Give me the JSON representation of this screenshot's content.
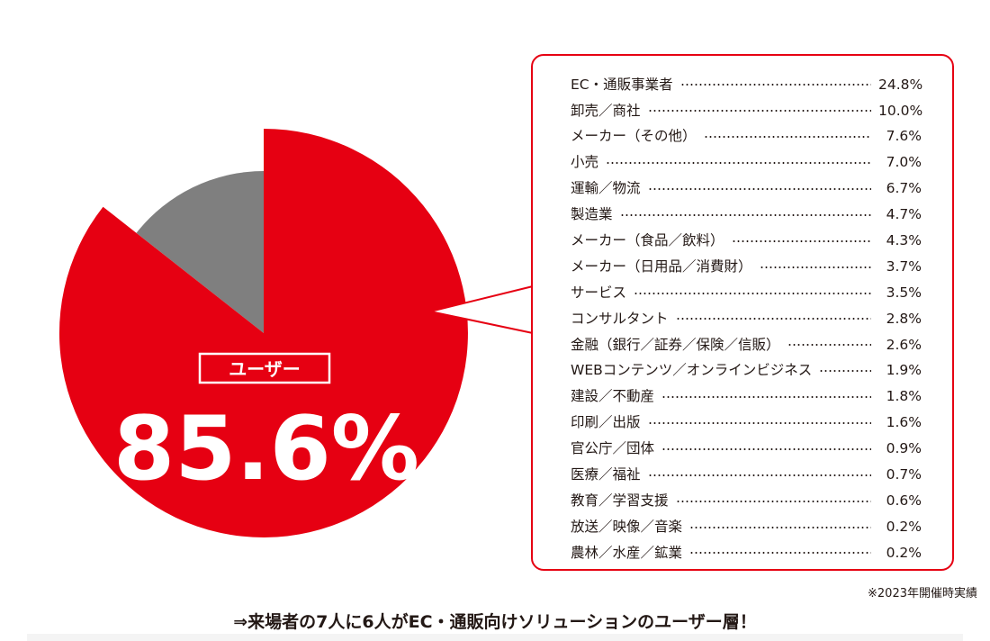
{
  "chart_data": {
    "type": "pie",
    "slices": [
      {
        "label": "ユーザー",
        "value": 85.6,
        "color": "#e60012"
      },
      {
        "label": "",
        "value": 14.4,
        "color": "#7f7f7f"
      }
    ],
    "callout": {
      "label": "ユーザー",
      "value_text": "85.6%"
    },
    "breakdown": [
      {
        "label": "EC・通販事業者",
        "value": 24.8,
        "text": "24.8%"
      },
      {
        "label": "卸売／商社",
        "value": 10.0,
        "text": "10.0%"
      },
      {
        "label": "メーカー（その他）",
        "value": 7.6,
        "text": "7.6%"
      },
      {
        "label": "小売",
        "value": 7.0,
        "text": "7.0%"
      },
      {
        "label": "運輸／物流",
        "value": 6.7,
        "text": "6.7%"
      },
      {
        "label": "製造業",
        "value": 4.7,
        "text": "4.7%"
      },
      {
        "label": "メーカー（食品／飲料）",
        "value": 4.3,
        "text": "4.3%"
      },
      {
        "label": "メーカー（日用品／消費財）",
        "value": 3.7,
        "text": "3.7%"
      },
      {
        "label": "サービス",
        "value": 3.5,
        "text": "3.5%"
      },
      {
        "label": "コンサルタント",
        "value": 2.8,
        "text": "2.8%"
      },
      {
        "label": "金融（銀行／証券／保険／信販）",
        "value": 2.6,
        "text": "2.6%"
      },
      {
        "label": "WEBコンテンツ／オンラインビジネス",
        "value": 1.9,
        "text": "1.9%"
      },
      {
        "label": "建設／不動産",
        "value": 1.8,
        "text": "1.8%"
      },
      {
        "label": "印刷／出版",
        "value": 1.6,
        "text": "1.6%"
      },
      {
        "label": "官公庁／団体",
        "value": 0.9,
        "text": "0.9%"
      },
      {
        "label": "医療／福祉",
        "value": 0.7,
        "text": "0.7%"
      },
      {
        "label": "教育／学習支援",
        "value": 0.6,
        "text": "0.6%"
      },
      {
        "label": "放送／映像／音楽",
        "value": 0.2,
        "text": "0.2%"
      },
      {
        "label": "農林／水産／鉱業",
        "value": 0.2,
        "text": "0.2%"
      }
    ]
  },
  "note": "※2023年開催時実績",
  "caption": "⇒来場者の7人に6人がEC・通販向けソリューションのユーザー層！",
  "colors": {
    "accent": "#e60012",
    "other": "#7f7f7f",
    "text": "#231815"
  }
}
